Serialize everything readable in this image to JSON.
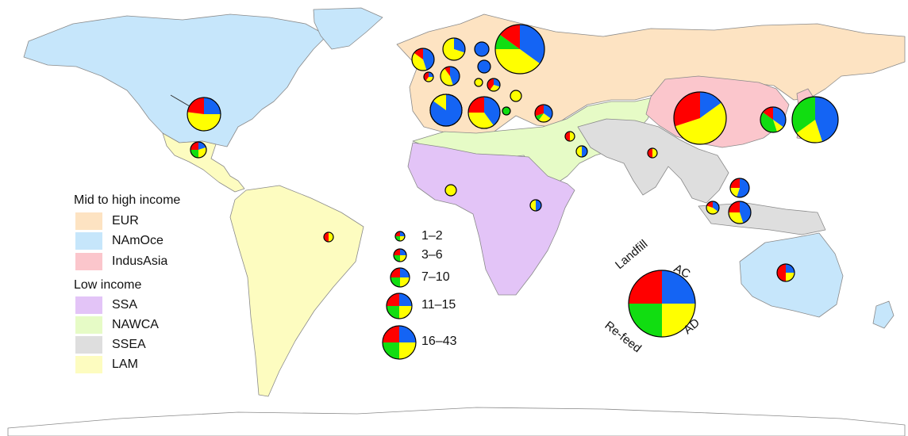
{
  "colors": {
    "ocean": "#ffffff",
    "border": "#8a8a8a",
    "AC": "#1464f4",
    "AD": "#ffff00",
    "Landfill": "#ff0000",
    "Re-feed": "#11dd11"
  },
  "regions": [
    {
      "code": "EUR",
      "color": "#fde3c2"
    },
    {
      "code": "NAmOce",
      "color": "#c6e6fb"
    },
    {
      "code": "IndusAsia",
      "color": "#fbc6cc"
    },
    {
      "code": "SSA",
      "color": "#e3c4f7"
    },
    {
      "code": "NAWCA",
      "color": "#e6fbc6"
    },
    {
      "code": "SSEA",
      "color": "#dedede"
    },
    {
      "code": "LAM",
      "color": "#fdfcc0"
    }
  ],
  "legend": {
    "group_high": "Mid to high income",
    "group_low": "Low income",
    "high": [
      {
        "label": "EUR",
        "color": "#fde3c2"
      },
      {
        "label": "NAmOce",
        "color": "#c6e6fb"
      },
      {
        "label": "IndusAsia",
        "color": "#fbc6cc"
      }
    ],
    "low": [
      {
        "label": "SSA",
        "color": "#e3c4f7"
      },
      {
        "label": "NAWCA",
        "color": "#e6fbc6"
      },
      {
        "label": "SSEA",
        "color": "#dedede"
      },
      {
        "label": "LAM",
        "color": "#fdfcc0"
      }
    ]
  },
  "size_legend": [
    "1–2",
    "3–6",
    "7–10",
    "11–15",
    "16–43"
  ],
  "key": {
    "labels": {
      "ac": "AC",
      "ad": "AD",
      "landfill": "Landfill",
      "refeed": "Re-feed"
    }
  },
  "pies": [
    {
      "place": "United States",
      "shares": {
        "AC": 0.25,
        "AD": 0.52,
        "Landfill": 0.23,
        "Re-feed": 0.0
      }
    },
    {
      "place": "Mexico",
      "shares": {
        "AC": 0.2,
        "AD": 0.3,
        "Landfill": 0.25,
        "Re-feed": 0.25
      }
    },
    {
      "place": "Brazil",
      "shares": {
        "AC": 0.0,
        "AD": 0.5,
        "Landfill": 0.5,
        "Re-feed": 0.0
      }
    },
    {
      "place": "Ireland",
      "shares": {
        "AC": 0.75,
        "AD": 0.2,
        "Landfill": 0.05,
        "Re-feed": 0.0
      }
    },
    {
      "place": "United Kingdom",
      "shares": {
        "AC": 0.45,
        "AD": 0.4,
        "Landfill": 0.15,
        "Re-feed": 0.0
      }
    },
    {
      "place": "Norway",
      "shares": {
        "AC": 0.3,
        "AD": 0.7,
        "Landfill": 0.0,
        "Re-feed": 0.0
      }
    },
    {
      "place": "Sweden",
      "shares": {
        "AC": 1.0,
        "AD": 0.0,
        "Landfill": 0.0,
        "Re-feed": 0.0
      }
    },
    {
      "place": "Finland",
      "shares": {
        "AC": 1.0,
        "AD": 0.0,
        "Landfill": 0.0,
        "Re-feed": 0.0
      }
    },
    {
      "place": "Russia",
      "shares": {
        "AC": 0.35,
        "AD": 0.4,
        "Landfill": 0.15,
        "Re-feed": 0.1
      }
    },
    {
      "place": "Belgium",
      "shares": {
        "AC": 0.25,
        "AD": 0.35,
        "Landfill": 0.4,
        "Re-feed": 0.0
      }
    },
    {
      "place": "Germany",
      "shares": {
        "AC": 0.45,
        "AD": 0.45,
        "Landfill": 0.1,
        "Re-feed": 0.0
      }
    },
    {
      "place": "Netherlands",
      "shares": {
        "AC": 0.0,
        "AD": 1.0,
        "Landfill": 0.0,
        "Re-feed": 0.0
      }
    },
    {
      "place": "Poland",
      "shares": {
        "AC": 0.3,
        "AD": 0.3,
        "Landfill": 0.4,
        "Re-feed": 0.0
      }
    },
    {
      "place": "Czechia",
      "shares": {
        "AC": 0.0,
        "AD": 1.0,
        "Landfill": 0.0,
        "Re-feed": 0.0
      }
    },
    {
      "place": "Spain",
      "shares": {
        "AC": 0.85,
        "AD": 0.15,
        "Landfill": 0.0,
        "Re-feed": 0.0
      }
    },
    {
      "place": "France",
      "shares": {
        "AC": 0.4,
        "AD": 0.35,
        "Landfill": 0.25,
        "Re-feed": 0.0
      }
    },
    {
      "place": "Italy",
      "shares": {
        "AC": 0.0,
        "AD": 0.0,
        "Landfill": 0.0,
        "Re-feed": 1.0
      }
    },
    {
      "place": "Turkey",
      "shares": {
        "AC": 0.35,
        "AD": 0.25,
        "Landfill": 0.3,
        "Re-feed": 0.1
      }
    },
    {
      "place": "Israel",
      "shares": {
        "AC": 0.0,
        "AD": 0.5,
        "Landfill": 0.5,
        "Re-feed": 0.0
      }
    },
    {
      "place": "Saudi Arabia",
      "shares": {
        "AC": 0.5,
        "AD": 0.5,
        "Landfill": 0.0,
        "Re-feed": 0.0
      }
    },
    {
      "place": "India",
      "shares": {
        "AC": 0.0,
        "AD": 0.5,
        "Landfill": 0.5,
        "Re-feed": 0.0
      }
    },
    {
      "place": "China",
      "shares": {
        "AC": 0.15,
        "AD": 0.55,
        "Landfill": 0.3,
        "Re-feed": 0.0
      }
    },
    {
      "place": "South Korea",
      "shares": {
        "AC": 0.35,
        "AD": 0.1,
        "Landfill": 0.15,
        "Re-feed": 0.4
      }
    },
    {
      "place": "Japan",
      "shares": {
        "AC": 0.45,
        "AD": 0.2,
        "Landfill": 0.0,
        "Re-feed": 0.35
      }
    },
    {
      "place": "Nigeria",
      "shares": {
        "AC": 0.0,
        "AD": 1.0,
        "Landfill": 0.0,
        "Re-feed": 0.0
      }
    },
    {
      "place": "Kenya",
      "shares": {
        "AC": 0.5,
        "AD": 0.5,
        "Landfill": 0.0,
        "Re-feed": 0.0
      }
    },
    {
      "place": "Philippines",
      "shares": {
        "AC": 0.55,
        "AD": 0.2,
        "Landfill": 0.25,
        "Re-feed": 0.0
      }
    },
    {
      "place": "Indonesia",
      "shares": {
        "AC": 0.35,
        "AD": 0.45,
        "Landfill": 0.2,
        "Re-feed": 0.0
      }
    },
    {
      "place": "Malaysia",
      "shares": {
        "AC": 0.45,
        "AD": 0.3,
        "Landfill": 0.25,
        "Re-feed": 0.0
      }
    },
    {
      "place": "Australia",
      "shares": {
        "AC": 0.25,
        "AD": 0.25,
        "Landfill": 0.5,
        "Re-feed": 0.0
      }
    }
  ]
}
